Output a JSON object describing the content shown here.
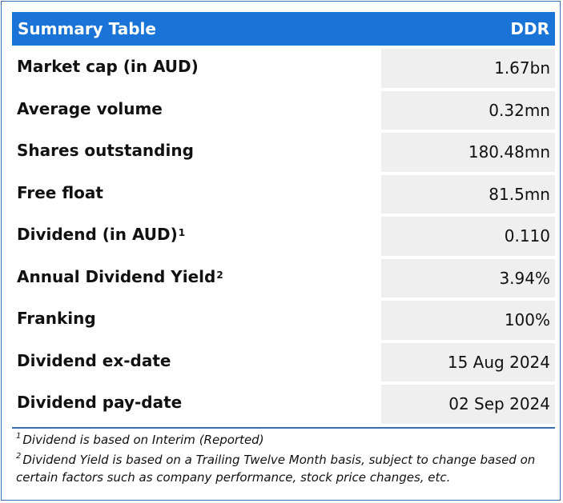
{
  "header": {
    "title": "Summary Table",
    "ticker": "DDR"
  },
  "rows": [
    {
      "label": "Market cap (in AUD)",
      "sup": "",
      "value": "1.67bn"
    },
    {
      "label": "Average volume",
      "sup": "",
      "value": "0.32mn"
    },
    {
      "label": "Shares outstanding",
      "sup": "",
      "value": "180.48mn"
    },
    {
      "label": "Free float",
      "sup": "",
      "value": "81.5mn"
    },
    {
      "label": "Dividend (in AUD)",
      "sup": "1",
      "value": "0.110"
    },
    {
      "label": "Annual Dividend Yield",
      "sup": "2",
      "value": "3.94%"
    },
    {
      "label": "Franking",
      "sup": "",
      "value": "100%"
    },
    {
      "label": "Dividend ex-date",
      "sup": "",
      "value": "15 Aug 2024"
    },
    {
      "label": "Dividend pay-date",
      "sup": "",
      "value": "02 Sep 2024"
    }
  ],
  "footnotes": [
    {
      "num": "1",
      "text": "Dividend is based on Interim (Reported)"
    },
    {
      "num": "2",
      "text": "Dividend Yield is based on a Trailing Twelve Month basis, subject to change based on certain factors such as company performance, stock price changes, etc."
    }
  ],
  "colors": {
    "header_bg": "#1a73d6",
    "value_bg": "#efefef",
    "border": "#3a6cb0"
  }
}
